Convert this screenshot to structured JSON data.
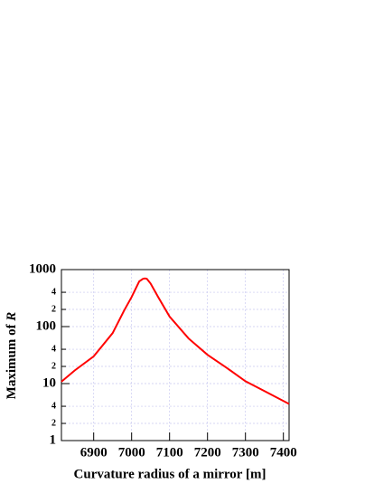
{
  "chart_data": {
    "type": "line",
    "log_y": true,
    "grid": true,
    "xlabel": "Curvature radius of a mirror [m]",
    "ylabel": "Maximum of",
    "ylabel_var": "R",
    "x": [
      6815,
      6850,
      6900,
      6950,
      6980,
      7000,
      7020,
      7030,
      7035,
      7040,
      7050,
      7070,
      7100,
      7150,
      7200,
      7250,
      7300,
      7350,
      7415
    ],
    "series": [
      {
        "color": "#ff0000",
        "values": [
          10.8,
          17,
          30,
          77,
          190,
          330,
          620,
          690,
          700,
          690,
          570,
          330,
          150,
          62,
          32,
          19,
          11,
          7.4,
          4.4
        ]
      }
    ],
    "xlim": [
      6815,
      7415
    ],
    "xticks": [
      6900,
      7000,
      7100,
      7200,
      7300,
      7400
    ],
    "ylim": [
      1,
      1000
    ],
    "yticks": [
      1,
      {
        "value": 2,
        "label": "2"
      },
      {
        "value": 4,
        "label": "4"
      },
      10,
      {
        "value": 20,
        "label": "2"
      },
      {
        "value": 40,
        "label": "4"
      },
      100,
      {
        "value": 200,
        "label": "2"
      },
      {
        "value": 400,
        "label": "4"
      },
      1000
    ]
  }
}
